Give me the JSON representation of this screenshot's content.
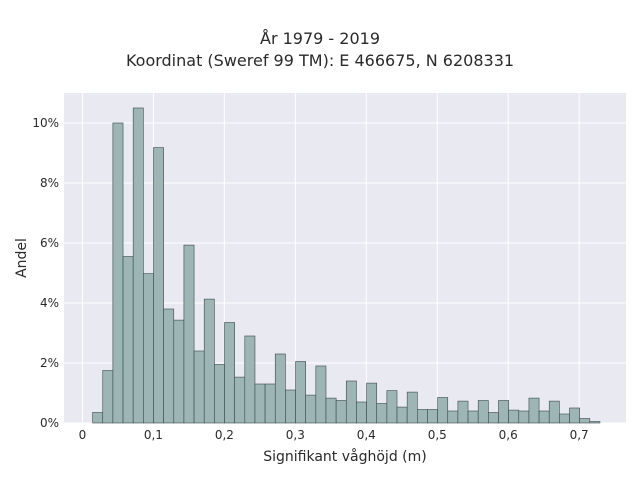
{
  "chart_data": {
    "type": "bar",
    "title": "År 1979 - 2019",
    "subtitle": "Koordinat (Sweref 99 TM): E 466675, N 6208331",
    "xlabel": "Signifikant våghöjd (m)",
    "ylabel": "Andel",
    "xlim": [
      -0.026,
      0.766
    ],
    "ylim": [
      0,
      11
    ],
    "bin_width": 0.0143,
    "bin_start": 0.0143,
    "values": [
      0.35,
      1.75,
      10.0,
      5.55,
      10.5,
      4.98,
      9.18,
      3.8,
      3.43,
      5.93,
      2.4,
      4.13,
      1.95,
      3.35,
      1.53,
      2.9,
      1.3,
      1.3,
      2.3,
      1.1,
      2.05,
      0.93,
      1.9,
      0.83,
      0.75,
      1.4,
      0.7,
      1.33,
      0.65,
      1.08,
      0.53,
      1.03,
      0.45,
      0.45,
      0.85,
      0.4,
      0.73,
      0.4,
      0.75,
      0.35,
      0.75,
      0.43,
      0.4,
      0.83,
      0.4,
      0.73,
      0.3,
      0.5,
      0.15,
      0.05
    ],
    "x_ticks": [
      0,
      0.1,
      0.2,
      0.3,
      0.4,
      0.5,
      0.6,
      0.7
    ],
    "x_tick_labels": [
      "0",
      "0,1",
      "0,2",
      "0,3",
      "0,4",
      "0,5",
      "0,6",
      "0,7"
    ],
    "y_ticks": [
      0,
      2,
      4,
      6,
      8,
      10
    ],
    "y_tick_labels": [
      "0%",
      "2%",
      "4%",
      "6%",
      "8%",
      "10%"
    ],
    "grid": true,
    "colors": {
      "bar_fill": "#9db5b5",
      "bar_stroke": "#3a4a4a",
      "plot_bg": "#e9e9f1",
      "grid": "#ffffff"
    }
  }
}
